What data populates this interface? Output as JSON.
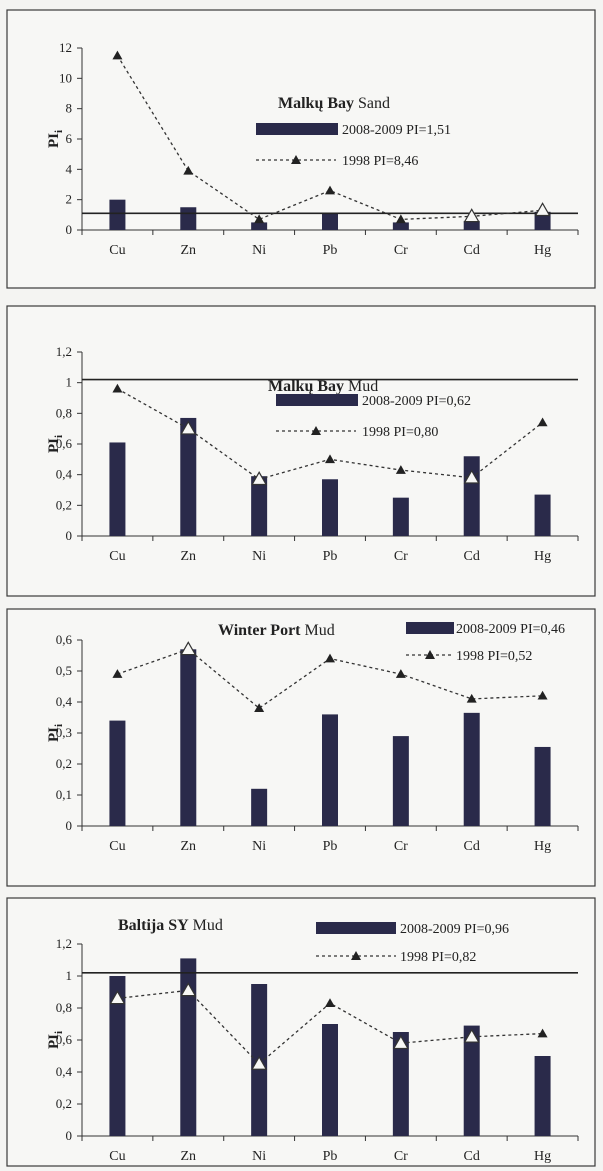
{
  "chart_data": [
    {
      "type": "bar",
      "title_bold": "Malkų Bay",
      "title_rest": " Sand",
      "ylabel": "PI",
      "ylabel_sub": "i",
      "categories": [
        "Cu",
        "Zn",
        "Ni",
        "Pb",
        "Cr",
        "Cd",
        "Hg"
      ],
      "ylim": [
        0,
        12
      ],
      "yticks": [
        0,
        2,
        4,
        6,
        8,
        10,
        12
      ],
      "ytick_labels": [
        "0",
        "2",
        "4",
        "6",
        "8",
        "10",
        "12"
      ],
      "reference_line": 1.1,
      "series": [
        {
          "name": "2008-2009 PI=1,51",
          "kind": "bar",
          "values": [
            2.0,
            1.5,
            0.5,
            1.1,
            0.5,
            0.6,
            1.2
          ]
        },
        {
          "name": "1998 PI=8,46",
          "kind": "line",
          "values": [
            11.5,
            3.9,
            0.7,
            2.6,
            0.7,
            0.9,
            1.3
          ]
        }
      ]
    },
    {
      "type": "bar",
      "title_bold": "Malkų Bay",
      "title_rest": " Mud",
      "ylabel": "PI",
      "ylabel_sub": "i",
      "categories": [
        "Cu",
        "Zn",
        "Ni",
        "Pb",
        "Cr",
        "Cd",
        "Hg"
      ],
      "ylim": [
        0,
        1.2
      ],
      "yticks": [
        0,
        0.2,
        0.4,
        0.6,
        0.8,
        1.0,
        1.2
      ],
      "ytick_labels": [
        "0",
        "0,2",
        "0,4",
        "0,6",
        "0,8",
        "1",
        "1,2"
      ],
      "reference_line": 1.02,
      "series": [
        {
          "name": "2008-2009 PI=0,62",
          "kind": "bar",
          "values": [
            0.61,
            0.77,
            0.39,
            0.37,
            0.25,
            0.52,
            0.27
          ]
        },
        {
          "name": "1998 PI=0,80",
          "kind": "line",
          "values": [
            0.96,
            0.7,
            0.37,
            0.5,
            0.43,
            0.38,
            0.74
          ]
        }
      ]
    },
    {
      "type": "bar",
      "title_bold": "Winter Port",
      "title_rest": " Mud",
      "ylabel": "PI",
      "ylabel_sub": "i",
      "categories": [
        "Cu",
        "Zn",
        "Ni",
        "Pb",
        "Cr",
        "Cd",
        "Hg"
      ],
      "ylim": [
        0,
        0.6
      ],
      "yticks": [
        0,
        0.1,
        0.2,
        0.3,
        0.4,
        0.5,
        0.6
      ],
      "ytick_labels": [
        "0",
        "0,1",
        "0,2",
        "0,3",
        "0,4",
        "0,5",
        "0,6"
      ],
      "reference_line": null,
      "series": [
        {
          "name": "2008-2009 PI=0,46",
          "kind": "bar",
          "values": [
            0.34,
            0.57,
            0.12,
            0.36,
            0.29,
            0.365,
            0.255
          ]
        },
        {
          "name": "1998 PI=0,52",
          "kind": "line",
          "values": [
            0.49,
            0.57,
            0.38,
            0.54,
            0.49,
            0.41,
            0.42
          ]
        }
      ]
    },
    {
      "type": "bar",
      "title_bold": "Baltija SY",
      "title_rest": " Mud",
      "ylabel": "PI",
      "ylabel_sub": "i",
      "categories": [
        "Cu",
        "Zn",
        "Ni",
        "Pb",
        "Cr",
        "Cd",
        "Hg"
      ],
      "ylim": [
        0,
        1.2
      ],
      "yticks": [
        0,
        0.2,
        0.4,
        0.6,
        0.8,
        1.0,
        1.2
      ],
      "ytick_labels": [
        "0",
        "0,2",
        "0,4",
        "0,6",
        "0,8",
        "1",
        "1,2"
      ],
      "reference_line": 1.02,
      "series": [
        {
          "name": "2008-2009 PI=0,96",
          "kind": "bar",
          "values": [
            1.0,
            1.11,
            0.95,
            0.7,
            0.65,
            0.69,
            0.5
          ]
        },
        {
          "name": "1998 PI=0,82",
          "kind": "line",
          "values": [
            0.86,
            0.91,
            0.45,
            0.83,
            0.58,
            0.62,
            0.64
          ]
        }
      ]
    }
  ]
}
